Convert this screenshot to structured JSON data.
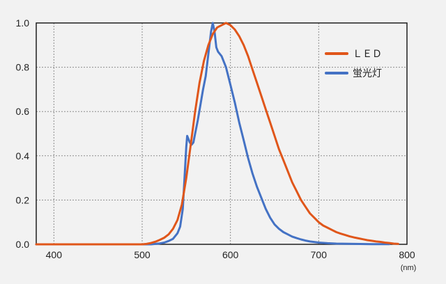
{
  "chart_data": {
    "type": "line",
    "title": "",
    "xlabel": "",
    "ylabel": "",
    "x_unit": "(nm)",
    "xlim": [
      380,
      800
    ],
    "ylim": [
      0,
      1.0
    ],
    "x_ticks": [
      "400",
      "500",
      "600",
      "700",
      "800"
    ],
    "y_ticks": [
      "0.0",
      "0.2",
      "0.4",
      "0.6",
      "0.8",
      "1.0"
    ],
    "grid": true,
    "legend_position": "top-right",
    "series": [
      {
        "name": "ＬＥＤ",
        "color": "#e0561a",
        "points": [
          [
            380,
            0
          ],
          [
            500,
            0
          ],
          [
            505,
            0.002
          ],
          [
            510,
            0.006
          ],
          [
            515,
            0.012
          ],
          [
            520,
            0.02
          ],
          [
            525,
            0.03
          ],
          [
            530,
            0.045
          ],
          [
            535,
            0.07
          ],
          [
            540,
            0.11
          ],
          [
            545,
            0.18
          ],
          [
            550,
            0.3
          ],
          [
            555,
            0.45
          ],
          [
            560,
            0.6
          ],
          [
            565,
            0.73
          ],
          [
            570,
            0.83
          ],
          [
            575,
            0.9
          ],
          [
            580,
            0.95
          ],
          [
            585,
            0.98
          ],
          [
            590,
            0.99
          ],
          [
            595,
            1.0
          ],
          [
            600,
            0.99
          ],
          [
            605,
            0.97
          ],
          [
            610,
            0.94
          ],
          [
            615,
            0.9
          ],
          [
            620,
            0.85
          ],
          [
            625,
            0.79
          ],
          [
            630,
            0.73
          ],
          [
            635,
            0.67
          ],
          [
            640,
            0.61
          ],
          [
            645,
            0.55
          ],
          [
            650,
            0.49
          ],
          [
            655,
            0.43
          ],
          [
            660,
            0.38
          ],
          [
            665,
            0.33
          ],
          [
            670,
            0.28
          ],
          [
            675,
            0.24
          ],
          [
            680,
            0.2
          ],
          [
            685,
            0.17
          ],
          [
            690,
            0.14
          ],
          [
            695,
            0.12
          ],
          [
            700,
            0.1
          ],
          [
            705,
            0.085
          ],
          [
            710,
            0.075
          ],
          [
            715,
            0.065
          ],
          [
            720,
            0.055
          ],
          [
            725,
            0.048
          ],
          [
            730,
            0.042
          ],
          [
            735,
            0.036
          ],
          [
            740,
            0.031
          ],
          [
            745,
            0.027
          ],
          [
            750,
            0.023
          ],
          [
            755,
            0.019
          ],
          [
            760,
            0.016
          ],
          [
            765,
            0.013
          ],
          [
            770,
            0.011
          ],
          [
            775,
            0.008
          ],
          [
            780,
            0.006
          ],
          [
            785,
            0.003
          ],
          [
            790,
            0.002
          ]
        ]
      },
      {
        "name": "蛍光灯",
        "color": "#4472c4",
        "points": [
          [
            380,
            0
          ],
          [
            510,
            0
          ],
          [
            515,
            0.002
          ],
          [
            520,
            0.004
          ],
          [
            525,
            0.008
          ],
          [
            530,
            0.015
          ],
          [
            535,
            0.025
          ],
          [
            540,
            0.05
          ],
          [
            543,
            0.08
          ],
          [
            546,
            0.16
          ],
          [
            548,
            0.3
          ],
          [
            550,
            0.44
          ],
          [
            551,
            0.49
          ],
          [
            552,
            0.48
          ],
          [
            554,
            0.46
          ],
          [
            556,
            0.45
          ],
          [
            558,
            0.46
          ],
          [
            560,
            0.5
          ],
          [
            563,
            0.56
          ],
          [
            566,
            0.63
          ],
          [
            569,
            0.7
          ],
          [
            572,
            0.76
          ],
          [
            575,
            0.86
          ],
          [
            578,
            0.96
          ],
          [
            580,
            1.0
          ],
          [
            582,
            0.96
          ],
          [
            584,
            0.89
          ],
          [
            586,
            0.87
          ],
          [
            590,
            0.85
          ],
          [
            595,
            0.8
          ],
          [
            600,
            0.72
          ],
          [
            605,
            0.64
          ],
          [
            610,
            0.55
          ],
          [
            615,
            0.47
          ],
          [
            620,
            0.39
          ],
          [
            625,
            0.32
          ],
          [
            630,
            0.26
          ],
          [
            635,
            0.21
          ],
          [
            640,
            0.16
          ],
          [
            645,
            0.12
          ],
          [
            650,
            0.09
          ],
          [
            655,
            0.07
          ],
          [
            660,
            0.055
          ],
          [
            665,
            0.045
          ],
          [
            670,
            0.035
          ],
          [
            675,
            0.028
          ],
          [
            680,
            0.022
          ],
          [
            685,
            0.017
          ],
          [
            690,
            0.013
          ],
          [
            700,
            0.008
          ],
          [
            710,
            0.005
          ],
          [
            720,
            0.003
          ],
          [
            740,
            0.002
          ],
          [
            760,
            0.001
          ],
          [
            780,
            0.0005
          ]
        ]
      }
    ]
  }
}
